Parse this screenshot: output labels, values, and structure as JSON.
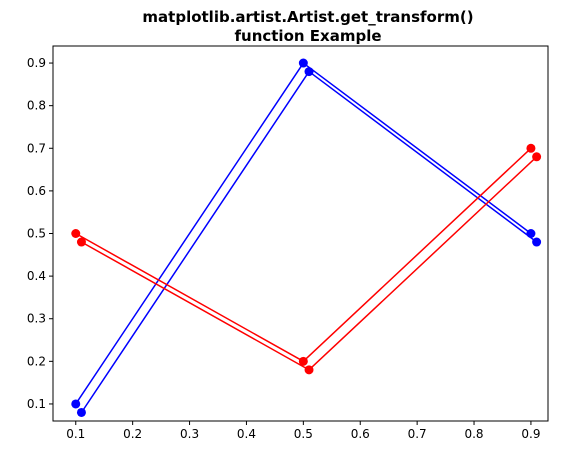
{
  "chart_data": {
    "type": "line",
    "title_lines": [
      "matplotlib.artist.Artist.get_transform()",
      "function Example"
    ],
    "xlabel": "",
    "ylabel": "",
    "xlim": [
      0.06,
      0.93
    ],
    "ylim": [
      0.06,
      0.94
    ],
    "xticks": [
      0.1,
      0.2,
      0.3,
      0.4,
      0.5,
      0.6,
      0.7,
      0.8,
      0.9
    ],
    "xtick_labels": [
      "0.1",
      "0.2",
      "0.3",
      "0.4",
      "0.5",
      "0.6",
      "0.7",
      "0.8",
      "0.9"
    ],
    "yticks": [
      0.1,
      0.2,
      0.3,
      0.4,
      0.5,
      0.6,
      0.7,
      0.8,
      0.9
    ],
    "ytick_labels": [
      "0.1",
      "0.2",
      "0.3",
      "0.4",
      "0.5",
      "0.6",
      "0.7",
      "0.8",
      "0.9"
    ],
    "grid": false,
    "series": [
      {
        "name": "blue",
        "color": "#0000ff",
        "x": [
          0.1,
          0.5,
          0.9
        ],
        "y": [
          0.1,
          0.9,
          0.5
        ]
      },
      {
        "name": "blue-offset",
        "color": "#0000ff",
        "x": [
          0.11,
          0.51,
          0.91
        ],
        "y": [
          0.08,
          0.88,
          0.48
        ]
      },
      {
        "name": "red",
        "color": "#ff0000",
        "x": [
          0.1,
          0.5,
          0.9
        ],
        "y": [
          0.5,
          0.2,
          0.7
        ]
      },
      {
        "name": "red-offset",
        "color": "#ff0000",
        "x": [
          0.11,
          0.51,
          0.91
        ],
        "y": [
          0.48,
          0.18,
          0.68
        ]
      }
    ]
  }
}
